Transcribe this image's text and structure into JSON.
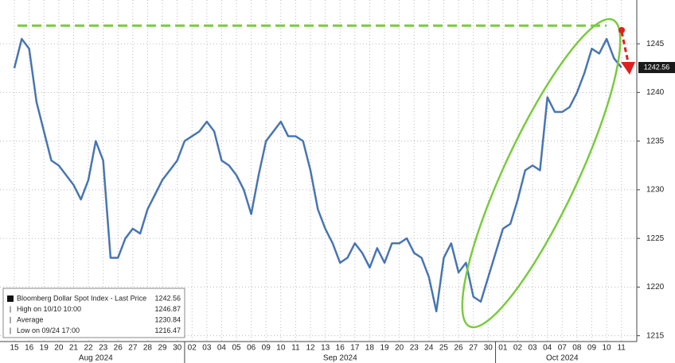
{
  "chart_data": {
    "type": "line",
    "xlim": [
      -0.97,
      42.04
    ],
    "ylim": [
      1214.4,
      1249.5
    ],
    "yticks": [
      1215,
      1220,
      1225,
      1230,
      1235,
      1240,
      1245
    ],
    "grid": true,
    "xticks": [
      {
        "value": 0,
        "label": "15"
      },
      {
        "value": 1,
        "label": "16"
      },
      {
        "value": 2,
        "label": "19"
      },
      {
        "value": 3,
        "label": "20"
      },
      {
        "value": 4,
        "label": "21"
      },
      {
        "value": 5,
        "label": "22"
      },
      {
        "value": 6,
        "label": "23"
      },
      {
        "value": 7,
        "label": "26"
      },
      {
        "value": 8,
        "label": "27"
      },
      {
        "value": 9,
        "label": "28"
      },
      {
        "value": 10,
        "label": "29"
      },
      {
        "value": 11,
        "label": "30"
      },
      {
        "value": 12,
        "label": "02"
      },
      {
        "value": 13,
        "label": "03"
      },
      {
        "value": 14,
        "label": "04"
      },
      {
        "value": 15,
        "label": "05"
      },
      {
        "value": 16,
        "label": "06"
      },
      {
        "value": 17,
        "label": "09"
      },
      {
        "value": 18,
        "label": "10"
      },
      {
        "value": 19,
        "label": "11"
      },
      {
        "value": 20,
        "label": "12"
      },
      {
        "value": 21,
        "label": "13"
      },
      {
        "value": 22,
        "label": "16"
      },
      {
        "value": 23,
        "label": "17"
      },
      {
        "value": 24,
        "label": "18"
      },
      {
        "value": 25,
        "label": "19"
      },
      {
        "value": 26,
        "label": "20"
      },
      {
        "value": 27,
        "label": "23"
      },
      {
        "value": 28,
        "label": "24"
      },
      {
        "value": 29,
        "label": "25"
      },
      {
        "value": 30,
        "label": "26"
      },
      {
        "value": 31,
        "label": "27"
      },
      {
        "value": 32,
        "label": "30"
      },
      {
        "value": 33,
        "label": "01"
      },
      {
        "value": 34,
        "label": "02"
      },
      {
        "value": 35,
        "label": "03"
      },
      {
        "value": 36,
        "label": "04"
      },
      {
        "value": 37,
        "label": "07"
      },
      {
        "value": 38,
        "label": "08"
      },
      {
        "value": 39,
        "label": "09"
      },
      {
        "value": 40,
        "label": "10"
      },
      {
        "value": 41,
        "label": "11"
      }
    ],
    "months": [
      "Aug 2024",
      "Sep 2024",
      "Oct 2024"
    ],
    "x": [
      0,
      0.5,
      1,
      1.5,
      2,
      2.5,
      3,
      3.5,
      4,
      4.5,
      5,
      5.5,
      6,
      6.5,
      7,
      7.5,
      8,
      8.5,
      9,
      9.5,
      10,
      10.5,
      11,
      11.5,
      12,
      12.5,
      13,
      13.5,
      14,
      14.5,
      15,
      15.5,
      16,
      16.5,
      17,
      17.5,
      18,
      18.5,
      19,
      19.5,
      20,
      20.5,
      21,
      21.5,
      22,
      22.5,
      23,
      23.5,
      24,
      24.5,
      25,
      25.5,
      26,
      26.5,
      27,
      27.5,
      28,
      28.5,
      29,
      29.5,
      30,
      30.5,
      31,
      31.5,
      32,
      32.5,
      33,
      33.5,
      34,
      34.5,
      35,
      35.5,
      36,
      36.5,
      37,
      37.5,
      38,
      38.5,
      39,
      39.5,
      40,
      40.5,
      41
    ],
    "series": [
      {
        "name": "Bloomberg Dollar Spot Index - Last Price",
        "color": "#2f74d0",
        "values": [
          1242.5,
          1245.5,
          1244.5,
          1239,
          1236,
          1233,
          1232.5,
          1231.5,
          1230.5,
          1229,
          1231,
          1235,
          1233,
          1223,
          1223,
          1225,
          1226,
          1225.5,
          1228,
          1229.5,
          1231,
          1232,
          1233,
          1235,
          1235.5,
          1236,
          1237,
          1236,
          1233,
          1232.5,
          1231.5,
          1230,
          1227.5,
          1231.5,
          1235,
          1236,
          1237,
          1235.5,
          1235.5,
          1235,
          1232,
          1228,
          1226,
          1224.5,
          1222.5,
          1223,
          1224.5,
          1223.5,
          1222,
          1224,
          1222.5,
          1224.5,
          1224.5,
          1225,
          1223.5,
          1223,
          1221,
          1217.5,
          1223,
          1224.5,
          1221.5,
          1222.5,
          1219,
          1218.5,
          1221,
          1223.5,
          1226,
          1226.5,
          1229,
          1232,
          1232.5,
          1232,
          1239.5,
          1238,
          1238,
          1238.5,
          1240,
          1242,
          1244.5,
          1244,
          1245.5,
          1243.5,
          1242.56
        ]
      }
    ],
    "legend": [
      {
        "label": "Bloomberg Dollar Spot Index - Last Price",
        "value": 1242.56
      },
      {
        "label": "High on 10/10 10:00",
        "value": 1246.87
      },
      {
        "label": "Average",
        "value": 1230.84
      },
      {
        "label": "Low on 09/24 17:00",
        "value": 1216.47
      }
    ]
  }
}
